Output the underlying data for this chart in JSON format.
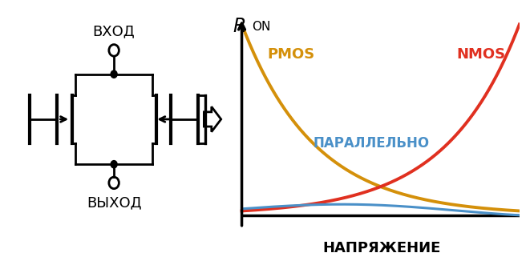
{
  "background_color": "#ffffff",
  "pmos_color": "#D4900A",
  "nmos_color": "#E03020",
  "parallel_color": "#4A90C8",
  "axis_color": "#000000",
  "label_vkhod": "ВХОД",
  "label_vykhod": "ВЫХОД",
  "label_napryazhenie": "НАПРЯЖЕНИЕ",
  "label_pmos": "PMOS",
  "label_nmos": "NMOS",
  "label_parallel": "ПАРАЛЛЕЛЬНО",
  "pmos_fontsize": 13,
  "nmos_fontsize": 13,
  "parallel_fontsize": 12,
  "napryazhenie_fontsize": 13,
  "circuit_label_fontsize": 13,
  "ron_fontsize_big": 17,
  "ron_fontsize_sub": 11,
  "nmos_linewidth": 2.8,
  "pmos_linewidth": 2.8,
  "parallel_linewidth": 2.2,
  "circuit_lw": 2.0
}
